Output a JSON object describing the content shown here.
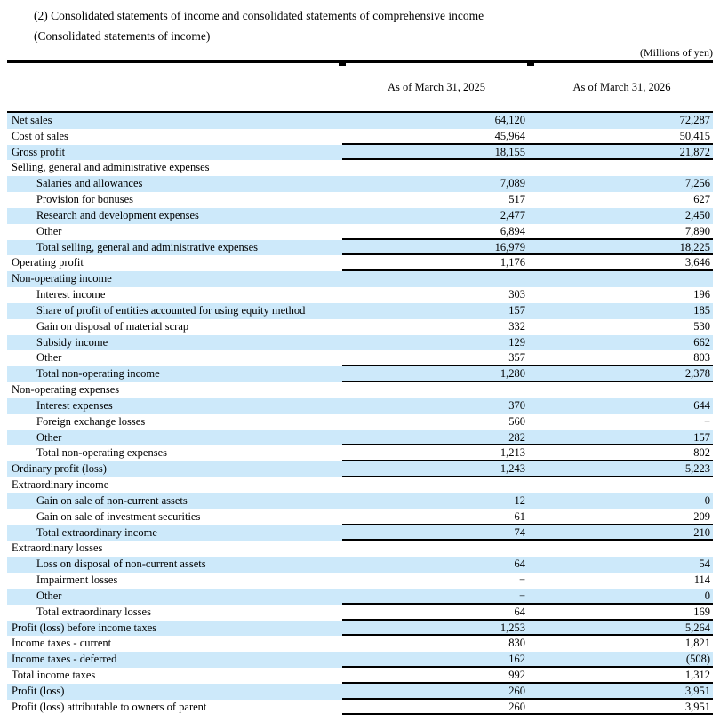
{
  "title_line1": "(2) Consolidated statements of income and consolidated statements of comprehensive income",
  "title_line2": "(Consolidated statements of income)",
  "unit_note": "(Millions of yen)",
  "columns": [
    "As of March 31, 2025",
    "As of March 31, 2026"
  ],
  "colors": {
    "row_highlight": "#CDE9FA",
    "border": "#000000",
    "text": "#000000",
    "background": "#FFFFFF"
  },
  "rows": [
    {
      "label": "Net sales",
      "indent": 0,
      "v1": "64,120",
      "v2": "72,287",
      "shaded": true,
      "line": false
    },
    {
      "label": "Cost of sales",
      "indent": 0,
      "v1": "45,964",
      "v2": "50,415",
      "shaded": false,
      "line": true
    },
    {
      "label": "Gross profit",
      "indent": 0,
      "v1": "18,155",
      "v2": "21,872",
      "shaded": true,
      "line": true
    },
    {
      "label": "Selling, general and administrative expenses",
      "indent": 0,
      "v1": "",
      "v2": "",
      "shaded": false,
      "line": false
    },
    {
      "label": "Salaries and allowances",
      "indent": 1,
      "v1": "7,089",
      "v2": "7,256",
      "shaded": true,
      "line": false
    },
    {
      "label": "Provision for bonuses",
      "indent": 1,
      "v1": "517",
      "v2": "627",
      "shaded": false,
      "line": false
    },
    {
      "label": "Research and development expenses",
      "indent": 1,
      "v1": "2,477",
      "v2": "2,450",
      "shaded": true,
      "line": false
    },
    {
      "label": "Other",
      "indent": 1,
      "v1": "6,894",
      "v2": "7,890",
      "shaded": false,
      "line": true
    },
    {
      "label": "Total selling, general and administrative expenses",
      "indent": 1,
      "v1": "16,979",
      "v2": "18,225",
      "shaded": true,
      "line": true
    },
    {
      "label": "Operating profit",
      "indent": 0,
      "v1": "1,176",
      "v2": "3,646",
      "shaded": false,
      "line": true
    },
    {
      "label": "Non-operating income",
      "indent": 0,
      "v1": "",
      "v2": "",
      "shaded": true,
      "line": false
    },
    {
      "label": "Interest income",
      "indent": 1,
      "v1": "303",
      "v2": "196",
      "shaded": false,
      "line": false
    },
    {
      "label": "Share of profit of entities accounted for using equity method",
      "indent": 1,
      "v1": "157",
      "v2": "185",
      "shaded": true,
      "line": false
    },
    {
      "label": "Gain on disposal of material scrap",
      "indent": 1,
      "v1": "332",
      "v2": "530",
      "shaded": false,
      "line": false
    },
    {
      "label": "Subsidy income",
      "indent": 1,
      "v1": "129",
      "v2": "662",
      "shaded": true,
      "line": false
    },
    {
      "label": "Other",
      "indent": 1,
      "v1": "357",
      "v2": "803",
      "shaded": false,
      "line": true
    },
    {
      "label": "Total non-operating income",
      "indent": 1,
      "v1": "1,280",
      "v2": "2,378",
      "shaded": true,
      "line": true
    },
    {
      "label": "Non-operating expenses",
      "indent": 0,
      "v1": "",
      "v2": "",
      "shaded": false,
      "line": false
    },
    {
      "label": "Interest expenses",
      "indent": 1,
      "v1": "370",
      "v2": "644",
      "shaded": true,
      "line": false
    },
    {
      "label": "Foreign exchange losses",
      "indent": 1,
      "v1": "560",
      "v2": "−",
      "shaded": false,
      "line": false
    },
    {
      "label": "Other",
      "indent": 1,
      "v1": "282",
      "v2": "157",
      "shaded": true,
      "line": true
    },
    {
      "label": "Total non-operating expenses",
      "indent": 1,
      "v1": "1,213",
      "v2": "802",
      "shaded": false,
      "line": true
    },
    {
      "label": "Ordinary profit (loss)",
      "indent": 0,
      "v1": "1,243",
      "v2": "5,223",
      "shaded": true,
      "line": true
    },
    {
      "label": "Extraordinary income",
      "indent": 0,
      "v1": "",
      "v2": "",
      "shaded": false,
      "line": false
    },
    {
      "label": "Gain on sale of non-current assets",
      "indent": 1,
      "v1": "12",
      "v2": "0",
      "shaded": true,
      "line": false
    },
    {
      "label": "Gain on sale of investment securities",
      "indent": 1,
      "v1": "61",
      "v2": "209",
      "shaded": false,
      "line": true
    },
    {
      "label": "Total extraordinary income",
      "indent": 1,
      "v1": "74",
      "v2": "210",
      "shaded": true,
      "line": true
    },
    {
      "label": "Extraordinary losses",
      "indent": 0,
      "v1": "",
      "v2": "",
      "shaded": false,
      "line": false
    },
    {
      "label": "Loss on disposal of non-current assets",
      "indent": 1,
      "v1": "64",
      "v2": "54",
      "shaded": true,
      "line": false
    },
    {
      "label": "Impairment losses",
      "indent": 1,
      "v1": "−",
      "v2": "114",
      "shaded": false,
      "line": false
    },
    {
      "label": "Other",
      "indent": 1,
      "v1": "−",
      "v2": "0",
      "shaded": true,
      "line": true
    },
    {
      "label": "Total extraordinary losses",
      "indent": 1,
      "v1": "64",
      "v2": "169",
      "shaded": false,
      "line": true
    },
    {
      "label": "Profit (loss) before income taxes",
      "indent": 0,
      "v1": "1,253",
      "v2": "5,264",
      "shaded": true,
      "line": true
    },
    {
      "label": "Income taxes - current",
      "indent": 0,
      "v1": "830",
      "v2": "1,821",
      "shaded": false,
      "line": false
    },
    {
      "label": "Income taxes - deferred",
      "indent": 0,
      "v1": "162",
      "v2": "(508)",
      "shaded": true,
      "line": true
    },
    {
      "label": "Total income taxes",
      "indent": 0,
      "v1": "992",
      "v2": "1,312",
      "shaded": false,
      "line": true
    },
    {
      "label": "Profit (loss)",
      "indent": 0,
      "v1": "260",
      "v2": "3,951",
      "shaded": true,
      "line": true
    },
    {
      "label": "Profit (loss) attributable to owners of parent",
      "indent": 0,
      "v1": "260",
      "v2": "3,951",
      "shaded": false,
      "line": true
    }
  ]
}
